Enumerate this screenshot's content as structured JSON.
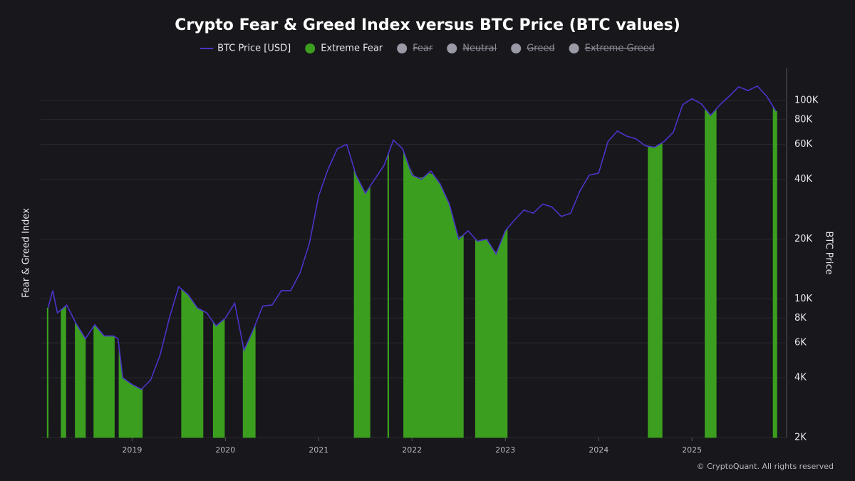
{
  "chart_data": {
    "type": "line",
    "title": "Crypto Fear & Greed Index versus BTC Price (BTC values)",
    "y_label": "Fear & Greed Index",
    "y2_label": "BTC Price",
    "copyright": "© CryptoQuant. All rights reserved",
    "xlim": [
      2018.02,
      2025.93
    ],
    "xticks": [
      2019,
      2020,
      2021,
      2022,
      2023,
      2024,
      2025
    ],
    "y2_log": true,
    "y2lim": [
      2000,
      146000
    ],
    "y2ticks": [
      {
        "value": 2000,
        "label": "2K"
      },
      {
        "value": 4000,
        "label": "4K"
      },
      {
        "value": 6000,
        "label": "6K"
      },
      {
        "value": 8000,
        "label": "8K"
      },
      {
        "value": 10000,
        "label": "10K"
      },
      {
        "value": 20000,
        "label": "20K"
      },
      {
        "value": 40000,
        "label": "40K"
      },
      {
        "value": 60000,
        "label": "60K"
      },
      {
        "value": 80000,
        "label": "80K"
      },
      {
        "value": 100000,
        "label": "100K"
      }
    ],
    "grid": true,
    "series": [
      {
        "name": "BTC Price [USD]",
        "color": "#4b34c9",
        "axis": "y2",
        "x": [
          2018.1,
          2018.15,
          2018.2,
          2018.3,
          2018.4,
          2018.5,
          2018.6,
          2018.7,
          2018.8,
          2018.85,
          2018.9,
          2019.0,
          2019.1,
          2019.2,
          2019.3,
          2019.4,
          2019.5,
          2019.6,
          2019.7,
          2019.8,
          2019.9,
          2020.0,
          2020.1,
          2020.2,
          2020.3,
          2020.4,
          2020.5,
          2020.6,
          2020.7,
          2020.8,
          2020.9,
          2021.0,
          2021.1,
          2021.2,
          2021.3,
          2021.4,
          2021.5,
          2021.6,
          2021.7,
          2021.8,
          2021.9,
          2022.0,
          2022.1,
          2022.2,
          2022.3,
          2022.4,
          2022.5,
          2022.6,
          2022.7,
          2022.8,
          2022.9,
          2023.0,
          2023.1,
          2023.2,
          2023.3,
          2023.4,
          2023.5,
          2023.6,
          2023.7,
          2023.8,
          2023.9,
          2024.0,
          2024.1,
          2024.2,
          2024.3,
          2024.4,
          2024.5,
          2024.6,
          2024.7,
          2024.8,
          2024.9,
          2025.0,
          2025.1,
          2025.2,
          2025.3,
          2025.4,
          2025.5,
          2025.6,
          2025.7,
          2025.8,
          2025.9
        ],
        "values": [
          9000,
          11000,
          8500,
          9300,
          7500,
          6300,
          7400,
          6500,
          6500,
          6300,
          4000,
          3700,
          3500,
          3900,
          5200,
          8000,
          11500,
          10500,
          9000,
          8500,
          7300,
          8000,
          9500,
          5500,
          7000,
          9200,
          9300,
          11000,
          11000,
          13500,
          19000,
          33000,
          45000,
          57000,
          60000,
          42000,
          34000,
          40000,
          47000,
          63000,
          57000,
          42000,
          40000,
          44000,
          38000,
          30000,
          20000,
          22000,
          19500,
          20000,
          16800,
          22000,
          25000,
          28000,
          27000,
          30000,
          29000,
          26000,
          27000,
          35000,
          42000,
          43000,
          62000,
          70000,
          66000,
          64000,
          59000,
          58000,
          62000,
          69000,
          95000,
          102000,
          96000,
          84000,
          95000,
          105000,
          117000,
          112000,
          118000,
          105000,
          88000
        ]
      },
      {
        "name": "Extreme Fear",
        "color": "#3c9e1e",
        "periods": [
          [
            2018.09,
            2018.1
          ],
          [
            2018.24,
            2018.29
          ],
          [
            2018.39,
            2018.5
          ],
          [
            2018.59,
            2018.81
          ],
          [
            2018.86,
            2019.11
          ],
          [
            2019.53,
            2019.76
          ],
          [
            2019.87,
            2019.99
          ],
          [
            2020.19,
            2020.32
          ],
          [
            2021.38,
            2021.55
          ],
          [
            2021.74,
            2021.75
          ],
          [
            2021.91,
            2022.55
          ],
          [
            2022.68,
            2023.02
          ],
          [
            2024.53,
            2024.68
          ],
          [
            2025.14,
            2025.26
          ],
          [
            2025.87,
            2025.91
          ]
        ]
      }
    ],
    "hidden_series": [
      {
        "name": "Fear",
        "color": "#9a9aa6"
      },
      {
        "name": "Neutral",
        "color": "#9a9aa6"
      },
      {
        "name": "Greed",
        "color": "#9a9aa6"
      },
      {
        "name": "Extreme Greed",
        "color": "#9a9aa6"
      }
    ]
  }
}
